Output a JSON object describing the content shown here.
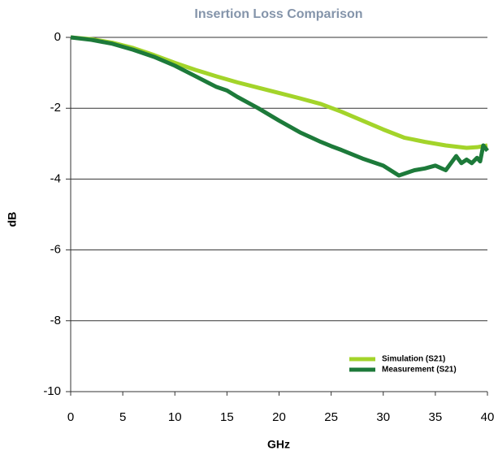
{
  "chart_data": {
    "type": "line",
    "title": "Insertion Loss Comparison",
    "xlabel": "GHz",
    "ylabel": "dB",
    "xlim": [
      0,
      40
    ],
    "xticks": [
      0,
      5,
      10,
      15,
      20,
      25,
      30,
      35,
      40
    ],
    "ylim": [
      -10,
      0
    ],
    "yticks": [
      -10,
      -8,
      -6,
      -4,
      -2,
      0
    ],
    "grid": true,
    "legend": "lower right",
    "series": [
      {
        "name": "Simulation (S21)",
        "color": "#a3d42a",
        "x": [
          0,
          2,
          4,
          6,
          8,
          10,
          12,
          14,
          16,
          18,
          20,
          22,
          24,
          26,
          28,
          30,
          32,
          34,
          36,
          38,
          39,
          40
        ],
        "values": [
          0,
          -0.05,
          -0.15,
          -0.3,
          -0.5,
          -0.72,
          -0.92,
          -1.1,
          -1.27,
          -1.42,
          -1.57,
          -1.72,
          -1.88,
          -2.1,
          -2.35,
          -2.6,
          -2.83,
          -2.95,
          -3.05,
          -3.12,
          -3.1,
          -3.05
        ]
      },
      {
        "name": "Measurement (S21)",
        "color": "#1d7a3a",
        "x": [
          0,
          2,
          4,
          6,
          8,
          10,
          12,
          14,
          15,
          16,
          18,
          20,
          22,
          24,
          25,
          26,
          28,
          30,
          31.5,
          33,
          34,
          35,
          36,
          37,
          37.5,
          38,
          38.5,
          39,
          39.3,
          39.6,
          40
        ],
        "values": [
          0,
          -0.07,
          -0.18,
          -0.35,
          -0.55,
          -0.8,
          -1.1,
          -1.4,
          -1.5,
          -1.68,
          -2.0,
          -2.35,
          -2.68,
          -2.95,
          -3.07,
          -3.18,
          -3.42,
          -3.62,
          -3.9,
          -3.75,
          -3.7,
          -3.62,
          -3.75,
          -3.35,
          -3.55,
          -3.45,
          -3.55,
          -3.4,
          -3.5,
          -3.05,
          -3.2
        ]
      }
    ]
  }
}
